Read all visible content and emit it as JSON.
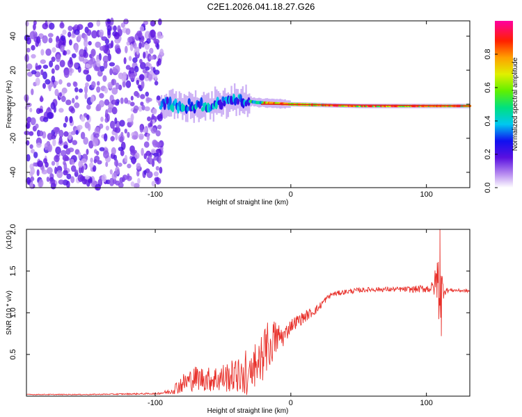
{
  "title": "C2E1.2026.041.18.27.G26",
  "colorbar": {
    "label": "Normalized spectral amplitude",
    "ticks": [
      0.0,
      0.2,
      0.4,
      0.6,
      0.8
    ],
    "tick_labels": [
      "0.0",
      "0.2",
      "0.4",
      "0.6",
      "0.8"
    ],
    "range": [
      0,
      1
    ]
  },
  "chart_data": [
    {
      "type": "heatmap",
      "name": "spectrogram",
      "xlabel": "Height of straight line (km)",
      "ylabel": "Frequency (Hz)",
      "xlim": [
        -195,
        132
      ],
      "ylim": [
        -49,
        49
      ],
      "xticks": [
        -100,
        0,
        100
      ],
      "xtick_labels": [
        "-100",
        "0",
        "100"
      ],
      "yticks": [
        -40,
        -20,
        0,
        20,
        40
      ],
      "ytick_labels": [
        "-40",
        "-20",
        "0",
        "20",
        "40"
      ],
      "noise_region_km": [
        -195,
        -95
      ],
      "signal_track": [
        {
          "x": -95,
          "freq": 0
        },
        {
          "x": -60,
          "freq": -1
        },
        {
          "x": -40,
          "freq": 3
        },
        {
          "x": -25,
          "freq": 1
        },
        {
          "x": 0,
          "freq": 0
        },
        {
          "x": 50,
          "freq": -1
        },
        {
          "x": 100,
          "freq": -1
        },
        {
          "x": 132,
          "freq": -1
        }
      ]
    },
    {
      "type": "line",
      "name": "snr",
      "xlabel": "Height of straight line (km)",
      "ylabel": "SNR (10 * v/v)",
      "yscale_label": "(x10⁴)",
      "xlim": [
        -195,
        132
      ],
      "ylim": [
        0,
        2.0
      ],
      "xticks": [
        -100,
        0,
        100
      ],
      "xtick_labels": [
        "-100",
        "0",
        "100"
      ],
      "yticks": [
        0.5,
        1.0,
        1.5,
        2.0
      ],
      "ytick_labels": [
        "0.5",
        "1.0",
        "1.5",
        "2.0"
      ],
      "series": [
        {
          "name": "SNR",
          "color": "#e8302a",
          "x": [
            -195,
            -150,
            -100,
            -90,
            -80,
            -70,
            -60,
            -50,
            -40,
            -30,
            -22,
            -15,
            -10,
            -5,
            0,
            5,
            10,
            15,
            20,
            25,
            30,
            40,
            50,
            60,
            70,
            80,
            90,
            100,
            105,
            108,
            110,
            112,
            115,
            120,
            132
          ],
          "y": [
            0.02,
            0.02,
            0.03,
            0.05,
            0.15,
            0.22,
            0.2,
            0.22,
            0.25,
            0.2,
            0.45,
            0.65,
            0.7,
            0.72,
            0.85,
            0.9,
            0.95,
            1.0,
            1.05,
            1.15,
            1.22,
            1.25,
            1.27,
            1.28,
            1.28,
            1.28,
            1.28,
            1.29,
            1.3,
            1.4,
            1.25,
            1.3,
            1.27,
            1.27,
            1.26
          ],
          "noise": [
            0.005,
            0.005,
            0.01,
            0.03,
            0.12,
            0.15,
            0.15,
            0.18,
            0.2,
            0.25,
            0.3,
            0.3,
            0.2,
            0.12,
            0.08,
            0.08,
            0.07,
            0.06,
            0.05,
            0.04,
            0.03,
            0.03,
            0.03,
            0.03,
            0.03,
            0.03,
            0.04,
            0.05,
            0.08,
            0.3,
            0.5,
            0.15,
            0.03,
            0.02,
            0.02
          ],
          "peaks": [
            {
              "x": 110,
              "y": 2.0
            },
            {
              "x": 111,
              "y": 0.72
            },
            {
              "x": 108,
              "y": 1.6
            }
          ]
        }
      ]
    }
  ]
}
